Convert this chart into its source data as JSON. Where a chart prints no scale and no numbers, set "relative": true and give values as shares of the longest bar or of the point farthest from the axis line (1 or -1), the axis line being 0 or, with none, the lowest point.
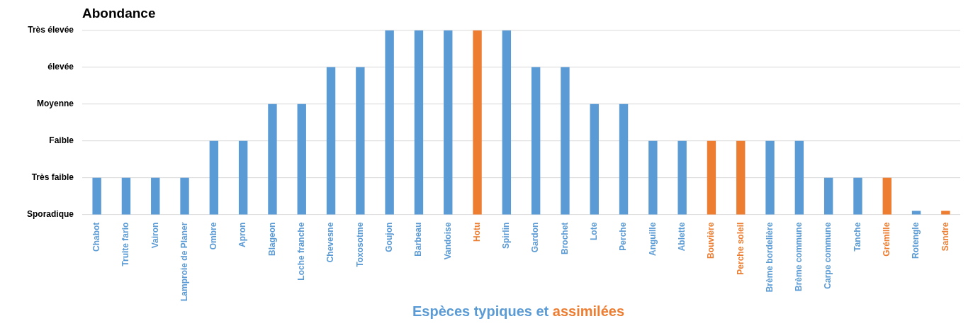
{
  "chart_data": {
    "type": "bar",
    "title": "Abondance",
    "xlabel": "Espèces typiques et assimilées",
    "categories": [
      "Chabot",
      "Truite fario",
      "Vairon",
      "Lamproie de Planer",
      "Ombre",
      "Apron",
      "Blageon",
      "Loche franche",
      "Chevesne",
      "Toxosotme",
      "Goujon",
      "Barbeau",
      "Vandoise",
      "Hotu",
      "Spirlin",
      "Gardon",
      "Brochet",
      "Lote",
      "Perche",
      "Anguille",
      "Ablette",
      "Bouvière",
      "Perche soleil",
      "Brème bordelière",
      "Brème commune",
      "Carpe commune",
      "Tanche",
      "Grémille",
      "Rotengle",
      "Sandre"
    ],
    "values": [
      0.2,
      0.2,
      0.2,
      0.2,
      0.4,
      0.4,
      0.6,
      0.6,
      0.8,
      0.8,
      1,
      1,
      1,
      1,
      1,
      0.8,
      0.8,
      0.6,
      0.6,
      0.4,
      0.4,
      0.4,
      0.4,
      0.4,
      0.4,
      0.2,
      0.2,
      0.2,
      0.02,
      0.02
    ],
    "colors": [
      "#5b9bd5",
      "#5b9bd5",
      "#5b9bd5",
      "#5b9bd5",
      "#5b9bd5",
      "#5b9bd5",
      "#5b9bd5",
      "#5b9bd5",
      "#5b9bd5",
      "#5b9bd5",
      "#5b9bd5",
      "#5b9bd5",
      "#5b9bd5",
      "#ed7d31",
      "#5b9bd5",
      "#5b9bd5",
      "#5b9bd5",
      "#5b9bd5",
      "#5b9bd5",
      "#5b9bd5",
      "#5b9bd5",
      "#ed7d31",
      "#ed7d31",
      "#5b9bd5",
      "#5b9bd5",
      "#5b9bd5",
      "#5b9bd5",
      "#ed7d31",
      "#5b9bd5",
      "#ed7d31"
    ],
    "relative": true,
    "annotations": [
      "Sporadique",
      "Très faible",
      "Faible",
      "Moyenne",
      "élevée",
      "Très élevée"
    ],
    "legend": false
  }
}
